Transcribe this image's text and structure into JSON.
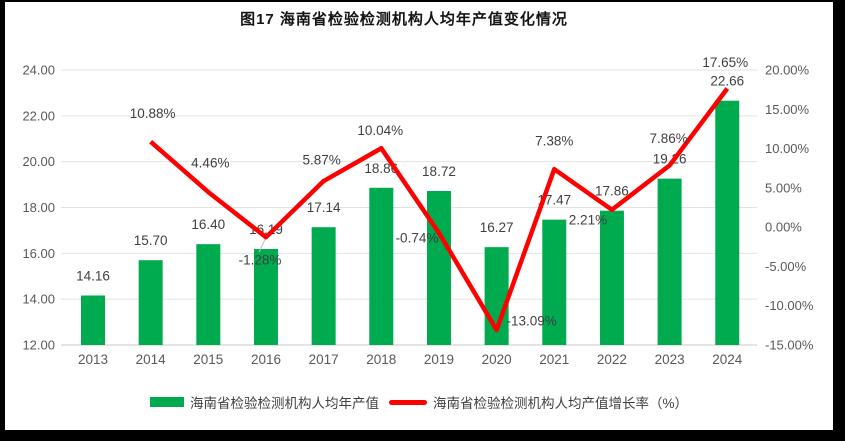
{
  "title": "图17  海南省检验检测机构人均年产值变化情况",
  "colors": {
    "bar": "#00AB50",
    "line": "#FF0000",
    "grid": "#E2E2E2",
    "axis_line": "#C9C9C9",
    "leader": "#BFBFBF",
    "axis_text": "#595959",
    "label_text": "#3F3F3F",
    "background": "#FFFFFF",
    "frame": "#000000"
  },
  "chart_data": {
    "type": "bar",
    "title": "图17  海南省检验检测机构人均年产值变化情况",
    "categories": [
      "2013",
      "2014",
      "2015",
      "2016",
      "2017",
      "2018",
      "2019",
      "2020",
      "2021",
      "2022",
      "2023",
      "2024"
    ],
    "series": [
      {
        "name": "海南省检验检测机构人均年产值",
        "type": "bar",
        "axis": "left",
        "color": "#00AB50",
        "values": [
          14.16,
          15.7,
          16.4,
          16.19,
          17.14,
          18.86,
          18.72,
          16.27,
          17.47,
          17.86,
          19.26,
          22.66
        ],
        "labels": [
          "14.16",
          "15.70",
          "16.40",
          "16.19",
          "17.14",
          "18.86",
          "18.72",
          "16.27",
          "17.47",
          "17.86",
          "19.26",
          "22.66"
        ]
      },
      {
        "name": "海南省检验检测机构人均产值增长率（%）",
        "type": "line",
        "axis": "right",
        "color": "#FF0000",
        "values": [
          null,
          10.88,
          4.46,
          -1.28,
          5.87,
          10.04,
          -0.74,
          -13.09,
          7.38,
          2.21,
          7.86,
          17.65
        ],
        "labels": [
          null,
          "10.88%",
          "4.46%",
          "-1.28%",
          "5.87%",
          "10.04%",
          "-0.74%",
          "-13.09%",
          "7.38%",
          "2.21%",
          "7.86%",
          "17.65%"
        ]
      }
    ],
    "left_axis": {
      "min": 12,
      "max": 24,
      "step": 2,
      "tick_labels": [
        "24.00",
        "22.00",
        "20.00",
        "18.00",
        "16.00",
        "14.00",
        "12.00"
      ]
    },
    "right_axis": {
      "min": -15,
      "max": 20,
      "step": 5,
      "tick_labels": [
        "20.00%",
        "15.00%",
        "10.00%",
        "5.00%",
        "0.00%",
        "-5.00%",
        "-10.00%",
        "-15.00%"
      ]
    },
    "grid": true,
    "legend_position": "bottom"
  }
}
